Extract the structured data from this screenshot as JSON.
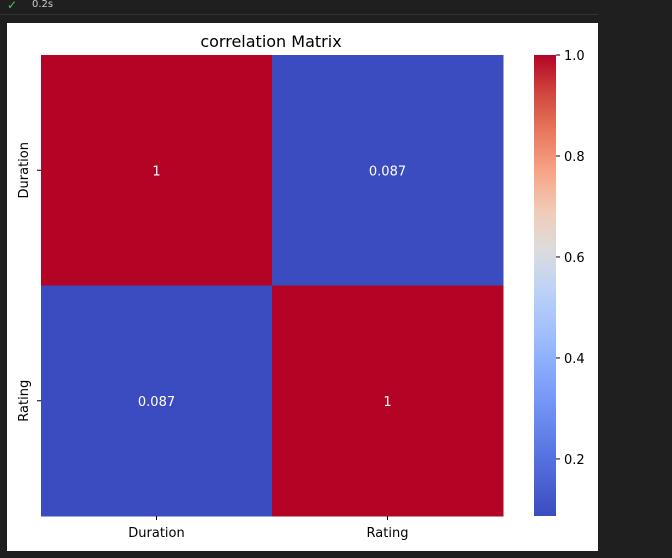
{
  "cell_status": {
    "icon": "check-icon",
    "execution_time": "0.2s"
  },
  "colors": {
    "high": "#b40426",
    "low": "#3b4cc0"
  },
  "chart_data": {
    "type": "heatmap",
    "title": "correlation Matrix",
    "x_labels": [
      "Duration",
      "Rating"
    ],
    "y_labels": [
      "Duration",
      "Rating"
    ],
    "values": [
      [
        1,
        0.087
      ],
      [
        0.087,
        1
      ]
    ],
    "cell_labels": [
      [
        "1",
        "0.087"
      ],
      [
        "0.087",
        "1"
      ]
    ],
    "colormap": "coolwarm",
    "colorbar": {
      "range": [
        0.087,
        1.0
      ],
      "ticks": [
        0.2,
        0.4,
        0.6,
        0.8,
        1.0
      ],
      "tick_labels": [
        "0.2",
        "0.4",
        "0.6",
        "0.8",
        "1.0"
      ]
    }
  }
}
